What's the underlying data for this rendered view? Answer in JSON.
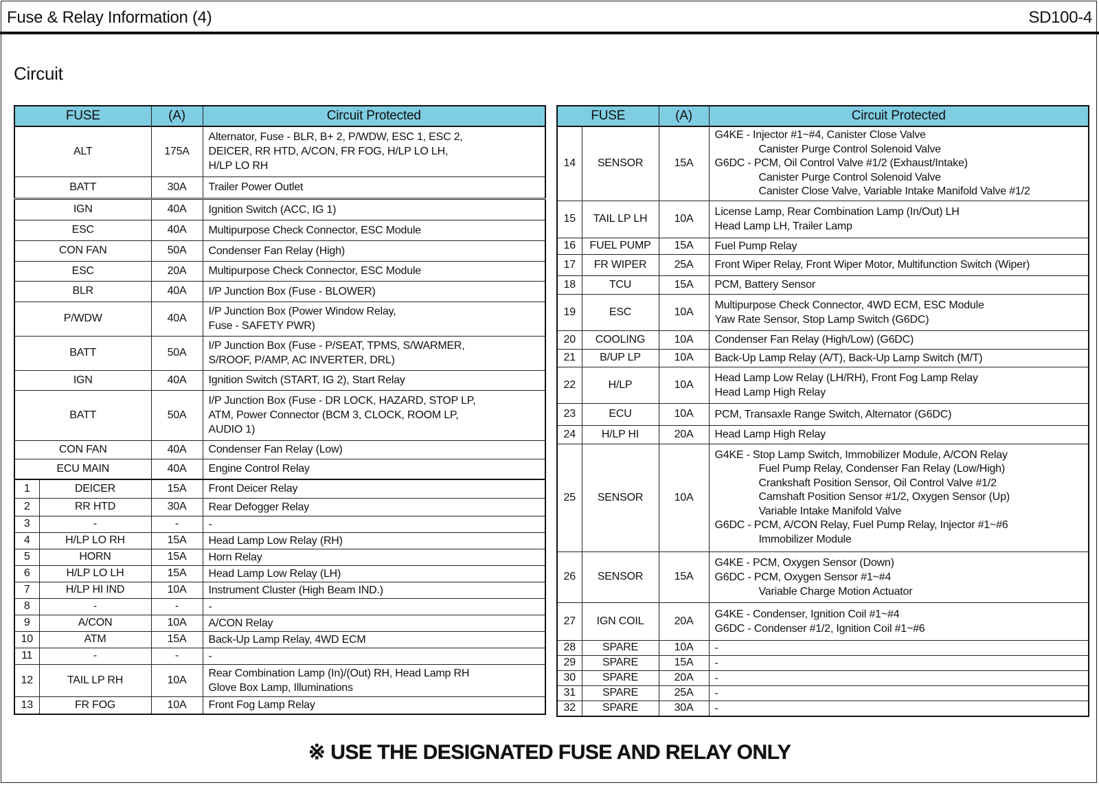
{
  "header": {
    "title": "Fuse & Relay Information (4)",
    "code": "SD100-4"
  },
  "section_title": "Circuit",
  "columns": {
    "fuse": "FUSE",
    "amps": "(A)",
    "circuit": "Circuit Protected"
  },
  "left_table": [
    {
      "no": "",
      "fuse": "ALT",
      "amps": "175A",
      "lines": [
        {
          "text": "Alternator, Fuse - BLR, B+ 2, P/WDW, ESC 1, ESC 2,"
        },
        {
          "text": "DEICER, RR HTD, A/CON, FR FOG, H/LP LO LH,"
        },
        {
          "text": "H/LP LO RH"
        }
      ]
    },
    {
      "no": "",
      "fuse": "BATT",
      "amps": "30A",
      "lines": [
        {
          "text": "Trailer Power Outlet"
        }
      ]
    },
    {
      "no": "",
      "fuse": "IGN",
      "amps": "40A",
      "lines": [
        {
          "text": "Ignition Switch (ACC, IG 1)"
        }
      ]
    },
    {
      "no": "",
      "fuse": "ESC",
      "amps": "40A",
      "lines": [
        {
          "text": "Multipurpose Check Connector, ESC Module"
        }
      ]
    },
    {
      "no": "",
      "fuse": "CON FAN",
      "amps": "50A",
      "lines": [
        {
          "text": "Condenser Fan Relay (High)"
        }
      ]
    },
    {
      "no": "",
      "fuse": "ESC",
      "amps": "20A",
      "lines": [
        {
          "text": "Multipurpose Check Connector, ESC Module"
        }
      ]
    },
    {
      "no": "",
      "fuse": "BLR",
      "amps": "40A",
      "lines": [
        {
          "text": "I/P Junction Box (Fuse - BLOWER)"
        }
      ]
    },
    {
      "no": "",
      "fuse": "P/WDW",
      "amps": "40A",
      "lines": [
        {
          "text": "I/P Junction Box (Power Window Relay,"
        },
        {
          "text": "Fuse - SAFETY PWR)"
        }
      ]
    },
    {
      "no": "",
      "fuse": "BATT",
      "amps": "50A",
      "lines": [
        {
          "text": "I/P Junction Box (Fuse - P/SEAT, TPMS, S/WARMER,"
        },
        {
          "text": "S/ROOF, P/AMP, AC INVERTER, DRL)"
        }
      ]
    },
    {
      "no": "",
      "fuse": "IGN",
      "amps": "40A",
      "lines": [
        {
          "text": "Ignition Switch (START, IG 2), Start Relay"
        }
      ]
    },
    {
      "no": "",
      "fuse": "BATT",
      "amps": "50A",
      "lines": [
        {
          "text": "I/P Junction Box (Fuse - DR LOCK, HAZARD, STOP LP,"
        },
        {
          "text": "ATM, Power Connector (BCM 3, CLOCK, ROOM LP,"
        },
        {
          "text": "AUDIO 1)"
        }
      ]
    },
    {
      "no": "",
      "fuse": "CON FAN",
      "amps": "40A",
      "lines": [
        {
          "text": "Condenser Fan Relay (Low)"
        }
      ]
    },
    {
      "no": "",
      "fuse": "ECU MAIN",
      "amps": "40A",
      "lines": [
        {
          "text": "Engine Control Relay"
        }
      ]
    },
    {
      "no": "1",
      "fuse": "DEICER",
      "amps": "15A",
      "lines": [
        {
          "text": "Front Deicer Relay"
        }
      ]
    },
    {
      "no": "2",
      "fuse": "RR HTD",
      "amps": "30A",
      "lines": [
        {
          "text": "Rear Defogger Relay"
        }
      ]
    },
    {
      "no": "3",
      "fuse": "-",
      "amps": "-",
      "lines": [
        {
          "text": "-"
        }
      ]
    },
    {
      "no": "4",
      "fuse": "H/LP LO RH",
      "amps": "15A",
      "lines": [
        {
          "text": "Head Lamp Low Relay (RH)"
        }
      ]
    },
    {
      "no": "5",
      "fuse": "HORN",
      "amps": "15A",
      "lines": [
        {
          "text": "Horn Relay"
        }
      ]
    },
    {
      "no": "6",
      "fuse": "H/LP LO LH",
      "amps": "15A",
      "lines": [
        {
          "text": "Head Lamp Low Relay (LH)"
        }
      ]
    },
    {
      "no": "7",
      "fuse": "H/LP HI IND",
      "amps": "10A",
      "lines": [
        {
          "text": "Instrument Cluster (High Beam IND.)"
        }
      ]
    },
    {
      "no": "8",
      "fuse": "-",
      "amps": "-",
      "lines": [
        {
          "text": "-"
        }
      ]
    },
    {
      "no": "9",
      "fuse": "A/CON",
      "amps": "10A",
      "lines": [
        {
          "text": "A/CON Relay"
        }
      ]
    },
    {
      "no": "10",
      "fuse": "ATM",
      "amps": "15A",
      "lines": [
        {
          "text": "Back-Up Lamp Relay, 4WD ECM"
        }
      ]
    },
    {
      "no": "11",
      "fuse": "-",
      "amps": "-",
      "lines": [
        {
          "text": "-"
        }
      ]
    },
    {
      "no": "12",
      "fuse": "TAIL LP RH",
      "amps": "10A",
      "lines": [
        {
          "text": "Rear Combination Lamp (In)/(Out) RH, Head Lamp RH"
        },
        {
          "text": "Glove Box Lamp, Illuminations"
        }
      ]
    },
    {
      "no": "13",
      "fuse": "FR FOG",
      "amps": "10A",
      "lines": [
        {
          "text": "Front Fog Lamp Relay"
        }
      ]
    }
  ],
  "right_table": [
    {
      "no": "14",
      "fuse": "SENSOR",
      "amps": "15A",
      "lines": [
        {
          "text": "G4KE - Injector #1~#4, Canister Close Valve"
        },
        {
          "text": "Canister Purge Control Solenoid Valve",
          "indent": true
        },
        {
          "text": "G6DC - PCM, Oil Control Valve #1/2 (Exhaust/Intake)"
        },
        {
          "text": "Canister Purge Control Solenoid Valve",
          "indent": true
        },
        {
          "text": "Canister Close Valve, Variable Intake Manifold Valve #1/2",
          "indent": true
        }
      ]
    },
    {
      "no": "15",
      "fuse": "TAIL LP LH",
      "amps": "10A",
      "lines": [
        {
          "text": "License Lamp, Rear Combination Lamp (In/Out) LH"
        },
        {
          "text": "Head Lamp LH, Trailer Lamp"
        }
      ]
    },
    {
      "no": "16",
      "fuse": "FUEL PUMP",
      "amps": "15A",
      "lines": [
        {
          "text": "Fuel Pump Relay"
        }
      ]
    },
    {
      "no": "17",
      "fuse": "FR WIPER",
      "amps": "25A",
      "lines": [
        {
          "text": "Front Wiper Relay, Front Wiper Motor, Multifunction Switch (Wiper)"
        }
      ]
    },
    {
      "no": "18",
      "fuse": "TCU",
      "amps": "15A",
      "lines": [
        {
          "text": "PCM, Battery Sensor"
        }
      ]
    },
    {
      "no": "19",
      "fuse": "ESC",
      "amps": "10A",
      "lines": [
        {
          "text": "Multipurpose Check Connector, 4WD ECM, ESC Module"
        },
        {
          "text": "Yaw Rate Sensor, Stop Lamp Switch (G6DC)"
        }
      ]
    },
    {
      "no": "20",
      "fuse": "COOLING",
      "amps": "10A",
      "lines": [
        {
          "text": "Condenser Fan Relay (High/Low) (G6DC)"
        }
      ]
    },
    {
      "no": "21",
      "fuse": "B/UP LP",
      "amps": "10A",
      "lines": [
        {
          "text": "Back-Up Lamp Relay (A/T), Back-Up Lamp Switch (M/T)"
        }
      ]
    },
    {
      "no": "22",
      "fuse": "H/LP",
      "amps": "10A",
      "lines": [
        {
          "text": "Head Lamp Low Relay (LH/RH), Front Fog Lamp Relay"
        },
        {
          "text": "Head Lamp High Relay"
        }
      ]
    },
    {
      "no": "23",
      "fuse": "ECU",
      "amps": "10A",
      "lines": [
        {
          "text": "PCM, Transaxle Range Switch, Alternator (G6DC)"
        }
      ]
    },
    {
      "no": "24",
      "fuse": "H/LP HI",
      "amps": "20A",
      "lines": [
        {
          "text": "Head Lamp High Relay"
        }
      ]
    },
    {
      "no": "25",
      "fuse": "SENSOR",
      "amps": "10A",
      "lines": [
        {
          "text": "G4KE - Stop Lamp Switch, Immobilizer Module, A/CON Relay"
        },
        {
          "text": "Fuel Pump Relay, Condenser Fan Relay (Low/High)",
          "indent": true
        },
        {
          "text": "Crankshaft Position Sensor, Oil Control Valve #1/2",
          "indent": true
        },
        {
          "text": "Camshaft Position Sensor #1/2, Oxygen Sensor (Up)",
          "indent": true
        },
        {
          "text": "Variable Intake Manifold Valve",
          "indent": true
        },
        {
          "text": "G6DC - PCM, A/CON Relay, Fuel Pump Relay, Injector #1~#6"
        },
        {
          "text": "Immobilizer Module",
          "indent": true
        }
      ]
    },
    {
      "no": "26",
      "fuse": "SENSOR",
      "amps": "15A",
      "lines": [
        {
          "text": "G4KE - PCM, Oxygen Sensor (Down)"
        },
        {
          "text": "G6DC - PCM, Oxygen Sensor #1~#4"
        },
        {
          "text": "Variable Charge Motion Actuator",
          "indent": true
        }
      ]
    },
    {
      "no": "27",
      "fuse": "IGN COIL",
      "amps": "20A",
      "lines": [
        {
          "text": "G4KE - Condenser, Ignition Coil #1~#4"
        },
        {
          "text": "G6DC - Condenser #1/2, Ignition Coil #1~#6"
        }
      ]
    },
    {
      "no": "28",
      "fuse": "SPARE",
      "amps": "10A",
      "lines": [
        {
          "text": "-"
        }
      ]
    },
    {
      "no": "29",
      "fuse": "SPARE",
      "amps": "15A",
      "lines": [
        {
          "text": "-"
        }
      ]
    },
    {
      "no": "30",
      "fuse": "SPARE",
      "amps": "20A",
      "lines": [
        {
          "text": "-"
        }
      ]
    },
    {
      "no": "31",
      "fuse": "SPARE",
      "amps": "25A",
      "lines": [
        {
          "text": "-"
        }
      ]
    },
    {
      "no": "32",
      "fuse": "SPARE",
      "amps": "30A",
      "lines": [
        {
          "text": "-"
        }
      ]
    }
  ],
  "footer_note": "※ USE THE DESIGNATED FUSE AND RELAY ONLY",
  "colors": {
    "header_fill": "#7fcde2",
    "text": "#111111"
  }
}
